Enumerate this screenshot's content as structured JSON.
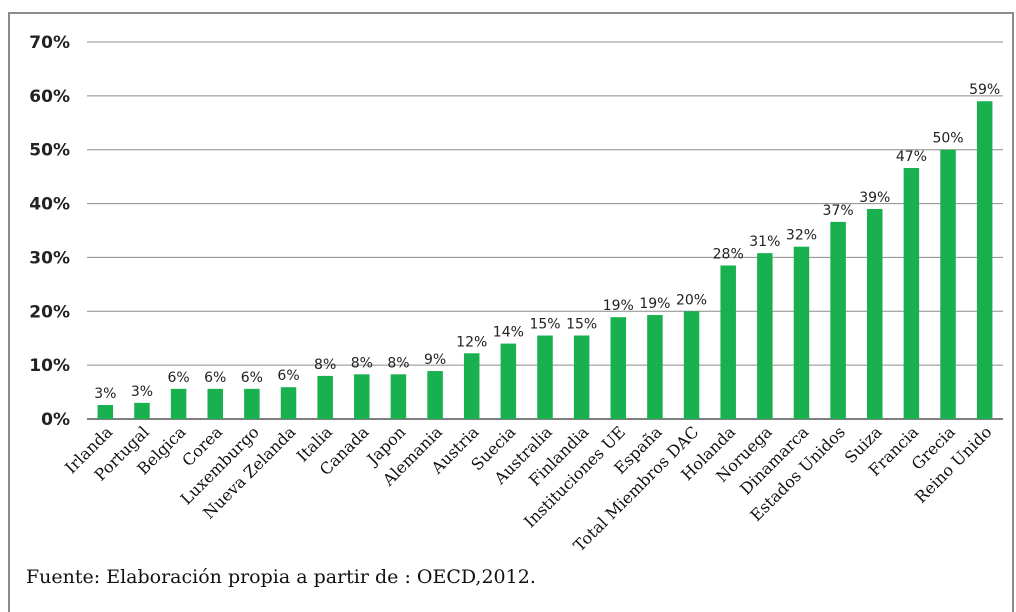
{
  "chart_data": {
    "type": "bar",
    "categories": [
      "Irlanda",
      "Portugal",
      "Belgica",
      "Corea",
      "Luxemburgo",
      "Nueva Zelanda",
      "Italia",
      "Canada",
      "Japon",
      "Alemania",
      "Austria",
      "Suecia",
      "Australia",
      "Finlandia",
      "Instituciones UE",
      "España",
      "Total Miembros DAC",
      "Holanda",
      "Noruega",
      "Dinamarca",
      "Estados Unidos",
      "Suiza",
      "Francia",
      "Grecia",
      "Reino Unido"
    ],
    "values": [
      2.6,
      3.0,
      5.6,
      5.6,
      5.6,
      5.9,
      8.0,
      8.3,
      8.3,
      8.9,
      12.2,
      14.0,
      15.5,
      15.5,
      18.9,
      19.3,
      20.0,
      28.5,
      30.8,
      32.0,
      36.6,
      39.0,
      46.6,
      50.0,
      59.0
    ],
    "data_labels": [
      "3%",
      "3%",
      "6%",
      "6%",
      "6%",
      "6%",
      "8%",
      "8%",
      "8%",
      "9%",
      "12%",
      "14%",
      "15%",
      "15%",
      "19%",
      "19%",
      "20%",
      "28%",
      "31%",
      "32%",
      "37%",
      "39%",
      "47%",
      "50%",
      "59%"
    ],
    "y_tick_labels": [
      "0%",
      "10%",
      "20%",
      "30%",
      "40%",
      "50%",
      "60%",
      "70%"
    ],
    "ylim": [
      0,
      70
    ],
    "title": "",
    "xlabel": "",
    "ylabel": "",
    "grid": true,
    "bar_color": "#19b04f",
    "grid_color": "#8c8c8c"
  },
  "source_note": "Fuente: Elaboración propia a partir de : OECD,2012."
}
